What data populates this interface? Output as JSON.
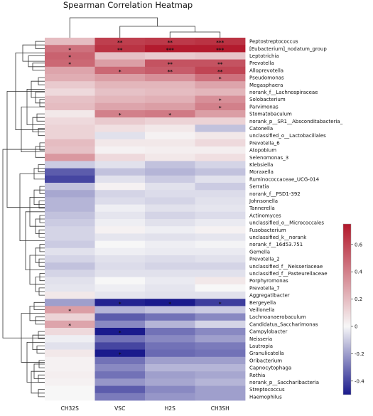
{
  "chart_data": {
    "type": "heatmap",
    "title": "Spearman Correlation Heatmap",
    "columns": [
      "CH32S",
      "VSC",
      "H2S",
      "CH3SH"
    ],
    "rows": [
      "Peptostreptococcus",
      "[Eubacterium]_nodatum_group",
      "Leptotrichia",
      "Prevotella",
      "Alloprevotella",
      "Pseudomonas",
      "Megasphaera",
      "norank_f__Lachnospiraceae",
      "Solobacterium",
      "Parvimonas",
      "Stomatobaculum",
      "norank_p__SR1__Absconditabacteria_",
      "Catonella",
      "unclassified_o__Lactobacillales",
      "Prevotella_6",
      "Atopobium",
      "Selenomonas_3",
      "Klebsiella",
      "Moraxella",
      "Ruminococcaceae_UCG-014",
      "Serratia",
      "norank_f__PSD1-392",
      "Johnsonella",
      "Tannerella",
      "Actinomyces",
      "unclassified_o__Micrococcales",
      "Fusobacterium",
      "unclassified_k__norank",
      "norank_f__16d53.751",
      "Gemella",
      "Prevotella_2",
      "unclassified_f__Neisseriaceae",
      "unclassified_f__Pasteurellaceae",
      "Porphyromonas",
      "Prevotella_7",
      "Aggregatibacter",
      "Bergeyella",
      "Veillonella",
      "Lachnoanaerobaculum",
      "Candidatus_Saccharimonas",
      "Campylobacter",
      "Neisseria",
      "Lautropia",
      "Granulicatella",
      "Oribacterium",
      "Capnocytophaga",
      "Rothia",
      "norank_p__Saccharibacteria",
      "Streptococcus",
      "Haemophilus"
    ],
    "values": [
      [
        0.2,
        0.62,
        0.64,
        0.66
      ],
      [
        0.45,
        0.66,
        0.74,
        0.74
      ],
      [
        0.5,
        0.18,
        0.15,
        0.17
      ],
      [
        0.48,
        0.3,
        0.55,
        0.55
      ],
      [
        0.28,
        0.48,
        0.52,
        0.6
      ],
      [
        0.25,
        0.3,
        0.35,
        0.45
      ],
      [
        0.15,
        0.22,
        0.22,
        0.28
      ],
      [
        0.1,
        0.18,
        0.2,
        0.22
      ],
      [
        0.18,
        0.22,
        0.24,
        0.35
      ],
      [
        0.2,
        0.28,
        0.3,
        0.4
      ],
      [
        0.05,
        0.4,
        0.42,
        0.3
      ],
      [
        0.1,
        0.15,
        0.12,
        0.12
      ],
      [
        0.12,
        0.08,
        0.05,
        -0.12
      ],
      [
        0.12,
        -0.05,
        0.02,
        0.05
      ],
      [
        0.2,
        0.05,
        0.05,
        0.1
      ],
      [
        0.18,
        0.02,
        0.03,
        0.03
      ],
      [
        0.32,
        0.1,
        0.05,
        0.08
      ],
      [
        -0.1,
        -0.05,
        -0.12,
        -0.08
      ],
      [
        -0.35,
        -0.12,
        -0.15,
        -0.12
      ],
      [
        -0.4,
        -0.05,
        -0.1,
        -0.05
      ],
      [
        -0.12,
        0.02,
        -0.05,
        -0.1
      ],
      [
        -0.18,
        -0.08,
        -0.06,
        -0.06
      ],
      [
        -0.15,
        -0.06,
        -0.08,
        -0.05
      ],
      [
        -0.15,
        -0.02,
        -0.05,
        -0.04
      ],
      [
        -0.12,
        -0.04,
        -0.08,
        -0.06
      ],
      [
        -0.1,
        -0.02,
        -0.05,
        -0.03
      ],
      [
        -0.08,
        0.02,
        -0.02,
        0.02
      ],
      [
        -0.08,
        -0.04,
        -0.05,
        -0.04
      ],
      [
        -0.1,
        0.0,
        -0.02,
        -0.01
      ],
      [
        -0.05,
        -0.02,
        -0.03,
        -0.03
      ],
      [
        -0.08,
        -0.05,
        -0.06,
        -0.05
      ],
      [
        -0.12,
        -0.06,
        -0.08,
        -0.08
      ],
      [
        -0.08,
        -0.05,
        -0.05,
        -0.05
      ],
      [
        -0.05,
        0.0,
        -0.03,
        0.05
      ],
      [
        -0.04,
        -0.02,
        -0.04,
        0.0
      ],
      [
        0.05,
        -0.04,
        -0.05,
        -0.05
      ],
      [
        -0.2,
        -0.48,
        -0.5,
        -0.42
      ],
      [
        0.3,
        -0.15,
        -0.12,
        -0.1
      ],
      [
        0.12,
        -0.35,
        -0.3,
        -0.25
      ],
      [
        0.28,
        -0.25,
        -0.15,
        -0.08
      ],
      [
        0.1,
        -0.52,
        -0.3,
        -0.25
      ],
      [
        -0.02,
        -0.3,
        -0.25,
        -0.2
      ],
      [
        -0.05,
        -0.4,
        -0.3,
        -0.28
      ],
      [
        0.05,
        -0.5,
        -0.32,
        -0.3
      ],
      [
        0.02,
        -0.3,
        -0.2,
        -0.2
      ],
      [
        0.02,
        -0.25,
        -0.15,
        -0.15
      ],
      [
        0.03,
        -0.3,
        -0.2,
        -0.18
      ],
      [
        0.02,
        -0.22,
        -0.18,
        -0.15
      ],
      [
        0.0,
        -0.35,
        -0.25,
        -0.2
      ],
      [
        0.0,
        -0.28,
        -0.22,
        -0.2
      ]
    ],
    "significance": [
      [
        "",
        "**",
        "**",
        "***"
      ],
      [
        "*",
        "**",
        "***",
        "***"
      ],
      [
        "*",
        "",
        "",
        ""
      ],
      [
        "*",
        "",
        "**",
        "**"
      ],
      [
        "",
        "*",
        "**",
        "**"
      ],
      [
        "",
        "",
        "",
        "*"
      ],
      [
        "",
        "",
        "",
        ""
      ],
      [
        "",
        "",
        "",
        ""
      ],
      [
        "",
        "",
        "",
        "*"
      ],
      [
        "",
        "",
        "",
        "*"
      ],
      [
        "",
        "*",
        "*",
        ""
      ],
      [
        "",
        "",
        "",
        ""
      ],
      [
        "",
        "",
        "",
        ""
      ],
      [
        "",
        "",
        "",
        ""
      ],
      [
        "",
        "",
        "",
        ""
      ],
      [
        "",
        "",
        "",
        ""
      ],
      [
        "",
        "",
        "",
        ""
      ],
      [
        "",
        "",
        "",
        ""
      ],
      [
        "",
        "",
        "",
        ""
      ],
      [
        "",
        "",
        "",
        ""
      ],
      [
        "",
        "",
        "",
        ""
      ],
      [
        "",
        "",
        "",
        ""
      ],
      [
        "",
        "",
        "",
        ""
      ],
      [
        "",
        "",
        "",
        ""
      ],
      [
        "",
        "",
        "",
        ""
      ],
      [
        "",
        "",
        "",
        ""
      ],
      [
        "",
        "",
        "",
        ""
      ],
      [
        "",
        "",
        "",
        ""
      ],
      [
        "",
        "",
        "",
        ""
      ],
      [
        "",
        "",
        "",
        ""
      ],
      [
        "",
        "",
        "",
        ""
      ],
      [
        "",
        "",
        "",
        ""
      ],
      [
        "",
        "",
        "",
        ""
      ],
      [
        "",
        "",
        "",
        ""
      ],
      [
        "",
        "",
        "",
        ""
      ],
      [
        "",
        "",
        "",
        ""
      ],
      [
        "",
        "*",
        "*",
        "*"
      ],
      [
        "*",
        "",
        "",
        ""
      ],
      [
        "",
        "",
        "",
        ""
      ],
      [
        "*",
        "",
        "",
        ""
      ],
      [
        "",
        "*",
        "",
        ""
      ],
      [
        "",
        "",
        "",
        ""
      ],
      [
        "",
        "",
        "",
        ""
      ],
      [
        "",
        "*",
        "",
        ""
      ],
      [
        "",
        "",
        "",
        ""
      ],
      [
        "",
        "",
        "",
        ""
      ],
      [
        "",
        "",
        "",
        ""
      ],
      [
        "",
        "",
        "",
        ""
      ],
      [
        "",
        "",
        "",
        ""
      ],
      [
        "",
        "",
        "",
        ""
      ]
    ],
    "colorbar": {
      "range": [
        -0.5,
        0.75
      ],
      "ticks": [
        "0.6",
        "0.4",
        "0.2",
        "0",
        "-0.2",
        "-0.4"
      ],
      "low_color": "#1a1a8c",
      "mid_color": "#f7f7f7",
      "high_color": "#b2182b"
    },
    "legend": "right"
  }
}
